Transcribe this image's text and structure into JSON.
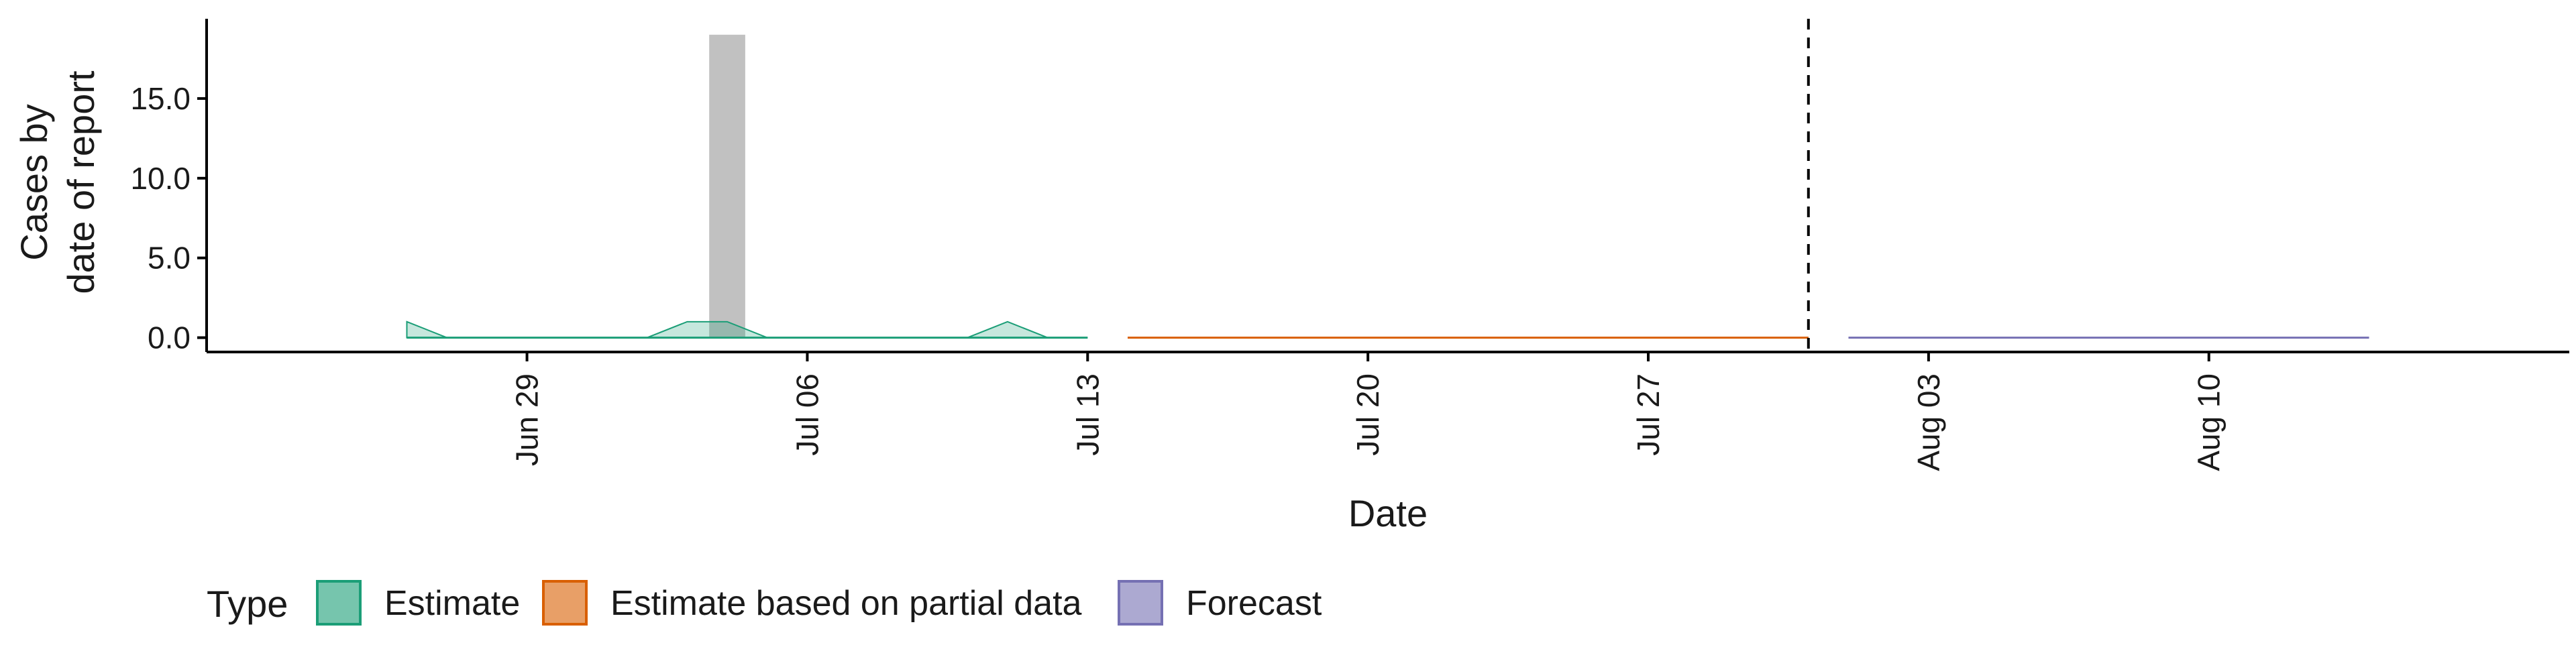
{
  "chart_data": {
    "type": "area",
    "xlabel": "Date",
    "ylabel_lines": [
      "Cases by",
      "date of report"
    ],
    "x_ticks": [
      "Jun 29",
      "Jul 06",
      "Jul 13",
      "Jul 20",
      "Jul 27",
      "Aug 03",
      "Aug 10"
    ],
    "y_ticks": [
      "0.0",
      "5.0",
      "10.0",
      "15.0"
    ],
    "ylim": [
      -0.9,
      20
    ],
    "xlim": [
      "2020-06-21",
      "2020-08-19"
    ],
    "reported_cases": [
      {
        "date": "2020-07-04",
        "value": 19
      }
    ],
    "divider_date": "2020-07-31",
    "legend_title": "Type",
    "series": [
      {
        "name": "Estimate",
        "color": "#1b9e77",
        "x": [
          "2020-06-26",
          "2020-06-27",
          "2020-06-28",
          "2020-06-29",
          "2020-06-30",
          "2020-07-01",
          "2020-07-02",
          "2020-07-03",
          "2020-07-04",
          "2020-07-05",
          "2020-07-06",
          "2020-07-07",
          "2020-07-08",
          "2020-07-09",
          "2020-07-10",
          "2020-07-11",
          "2020-07-12",
          "2020-07-13"
        ],
        "upper": [
          1,
          0,
          0,
          0,
          0,
          0,
          0,
          1,
          1,
          0,
          0,
          0,
          0,
          0,
          0,
          1,
          0,
          0
        ],
        "lower": [
          0,
          0,
          0,
          0,
          0,
          0,
          0,
          0,
          0,
          0,
          0,
          0,
          0,
          0,
          0,
          0,
          0,
          0
        ]
      },
      {
        "name": "Estimate based on partial data",
        "color": "#d95f02",
        "x": [
          "2020-07-14",
          "2020-07-31"
        ],
        "upper": [
          0,
          0
        ],
        "lower": [
          0,
          0
        ]
      },
      {
        "name": "Forecast",
        "color": "#7570b3",
        "x": [
          "2020-08-01",
          "2020-08-14"
        ],
        "upper": [
          0,
          0
        ],
        "lower": [
          0,
          0
        ]
      }
    ]
  }
}
